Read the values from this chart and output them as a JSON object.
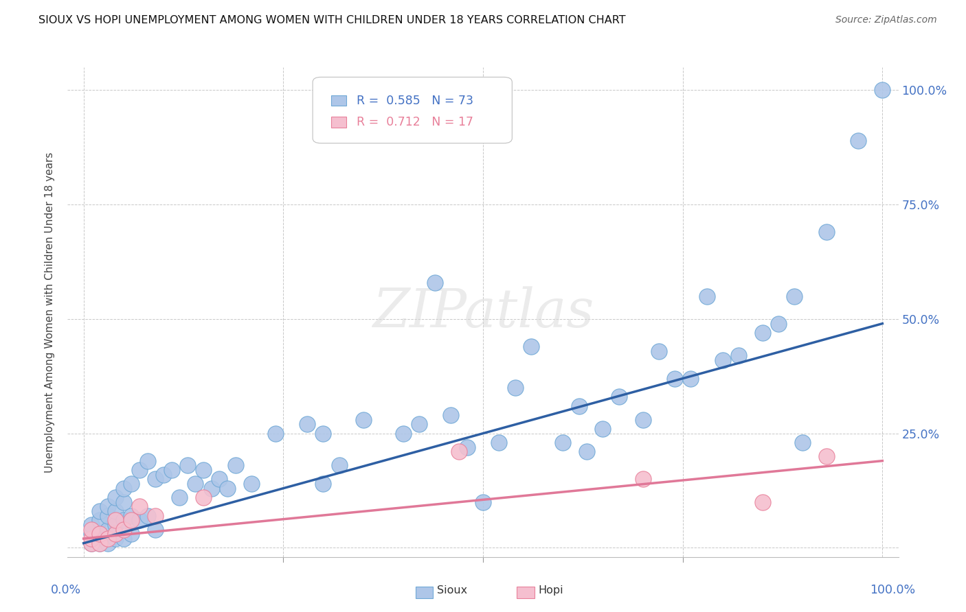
{
  "title": "SIOUX VS HOPI UNEMPLOYMENT AMONG WOMEN WITH CHILDREN UNDER 18 YEARS CORRELATION CHART",
  "source": "Source: ZipAtlas.com",
  "ylabel": "Unemployment Among Women with Children Under 18 years",
  "xlim": [
    0.0,
    1.0
  ],
  "ylim": [
    0.0,
    1.0
  ],
  "xticks": [
    0.0,
    0.25,
    0.5,
    0.75,
    1.0
  ],
  "yticks": [
    0.0,
    0.25,
    0.5,
    0.75,
    1.0
  ],
  "yticklabels_right": [
    "",
    "25.0%",
    "50.0%",
    "75.0%",
    "100.0%"
  ],
  "xticklabels_bottom": [
    "0.0%",
    "",
    "",
    "",
    "100.0%"
  ],
  "sioux_color": "#aec6e8",
  "sioux_edge_color": "#6fa8d6",
  "hopi_color": "#f5bfcf",
  "hopi_edge_color": "#e8809a",
  "sioux_line_color": "#2e5fa3",
  "hopi_line_color": "#e07898",
  "legend_sioux_R": "0.585",
  "legend_sioux_N": "73",
  "legend_hopi_R": "0.712",
  "legend_hopi_N": "17",
  "watermark_text": "ZIPatlas",
  "background_color": "#ffffff",
  "grid_color": "#c8c8c8",
  "tick_label_color": "#4472c4",
  "sioux_x": [
    0.01,
    0.01,
    0.01,
    0.02,
    0.02,
    0.02,
    0.02,
    0.03,
    0.03,
    0.03,
    0.03,
    0.04,
    0.04,
    0.04,
    0.04,
    0.05,
    0.05,
    0.05,
    0.05,
    0.06,
    0.06,
    0.06,
    0.07,
    0.07,
    0.08,
    0.08,
    0.09,
    0.09,
    0.1,
    0.11,
    0.12,
    0.13,
    0.14,
    0.15,
    0.16,
    0.17,
    0.18,
    0.19,
    0.21,
    0.24,
    0.28,
    0.3,
    0.3,
    0.32,
    0.35,
    0.4,
    0.42,
    0.44,
    0.46,
    0.48,
    0.5,
    0.52,
    0.54,
    0.56,
    0.6,
    0.62,
    0.63,
    0.65,
    0.67,
    0.7,
    0.72,
    0.74,
    0.76,
    0.78,
    0.8,
    0.82,
    0.85,
    0.87,
    0.89,
    0.9,
    0.93,
    0.97,
    1.0
  ],
  "sioux_y": [
    0.01,
    0.03,
    0.05,
    0.01,
    0.03,
    0.06,
    0.08,
    0.01,
    0.04,
    0.07,
    0.09,
    0.02,
    0.05,
    0.08,
    0.11,
    0.02,
    0.06,
    0.1,
    0.13,
    0.03,
    0.07,
    0.14,
    0.06,
    0.17,
    0.07,
    0.19,
    0.04,
    0.15,
    0.16,
    0.17,
    0.11,
    0.18,
    0.14,
    0.17,
    0.13,
    0.15,
    0.13,
    0.18,
    0.14,
    0.25,
    0.27,
    0.25,
    0.14,
    0.18,
    0.28,
    0.25,
    0.27,
    0.58,
    0.29,
    0.22,
    0.1,
    0.23,
    0.35,
    0.44,
    0.23,
    0.31,
    0.21,
    0.26,
    0.33,
    0.28,
    0.43,
    0.37,
    0.37,
    0.55,
    0.41,
    0.42,
    0.47,
    0.49,
    0.55,
    0.23,
    0.69,
    0.89,
    1.0
  ],
  "hopi_x": [
    0.01,
    0.01,
    0.01,
    0.02,
    0.02,
    0.03,
    0.04,
    0.04,
    0.05,
    0.06,
    0.07,
    0.09,
    0.15,
    0.47,
    0.7,
    0.85,
    0.93
  ],
  "hopi_y": [
    0.01,
    0.02,
    0.04,
    0.01,
    0.03,
    0.02,
    0.03,
    0.06,
    0.04,
    0.06,
    0.09,
    0.07,
    0.11,
    0.21,
    0.15,
    0.1,
    0.2
  ]
}
